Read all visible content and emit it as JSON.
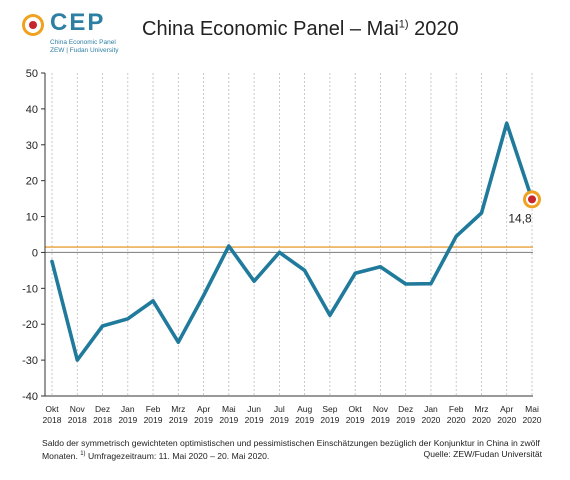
{
  "logo": {
    "name": "CEP",
    "subtitle_1": "China Economic Panel",
    "subtitle_2": "ZEW | Fudan University"
  },
  "title": {
    "text": "China Economic Panel – Mai",
    "superscript": "1)",
    "year": " 2020"
  },
  "chart_data": {
    "type": "line",
    "title": "China Economic Panel – Mai1) 2020",
    "categories_month": [
      "Okt",
      "Nov",
      "Dez",
      "Jan",
      "Feb",
      "Mrz",
      "Apr",
      "Mai",
      "Jun",
      "Jul",
      "Aug",
      "Sep",
      "Okt",
      "Nov",
      "Dez",
      "Jan",
      "Feb",
      "Mrz",
      "Apr",
      "Mai"
    ],
    "categories_year": [
      "2018",
      "2018",
      "2018",
      "2019",
      "2019",
      "2019",
      "2019",
      "2019",
      "2019",
      "2019",
      "2019",
      "2019",
      "2019",
      "2019",
      "2019",
      "2020",
      "2020",
      "2020",
      "2020",
      "2020"
    ],
    "series": [
      {
        "values": [
          -2.5,
          -30,
          -20.5,
          -18.5,
          -13.5,
          -25,
          -12,
          1.8,
          -8,
          0,
          -5,
          -17.5,
          -5.8,
          -4,
          -8.8,
          -8.7,
          4.5,
          11,
          36,
          14.8
        ]
      }
    ],
    "reference_line": 1.5,
    "last_value_label": "14,8",
    "ylim": [
      -40,
      50
    ],
    "yticks": [
      50,
      40,
      30,
      20,
      10,
      0,
      -10,
      -20,
      -30,
      -40
    ],
    "xlabel": "",
    "ylabel": "",
    "grid": "vertical dashed",
    "colors": {
      "line": "#1f7a9c",
      "reference": "#e8a13a",
      "zero": "#8a8a8a",
      "grid": "#bbbbbb",
      "marker_outer": "#f0a11f",
      "marker_inner": "#c9252c"
    }
  },
  "footnote": {
    "line1": "Saldo der symmetrisch gewichteten optimistischen und pessimistischen Einschätzungen bezüglich der Konjunktur in China in zwölf",
    "line2_prefix": "Monaten. ",
    "line2_sup": "1)",
    "line2_text": " Umfragezeitraum: 11. Mai 2020 – 20. Mai 2020.",
    "source": "Quelle: ZEW/Fudan Universität"
  }
}
